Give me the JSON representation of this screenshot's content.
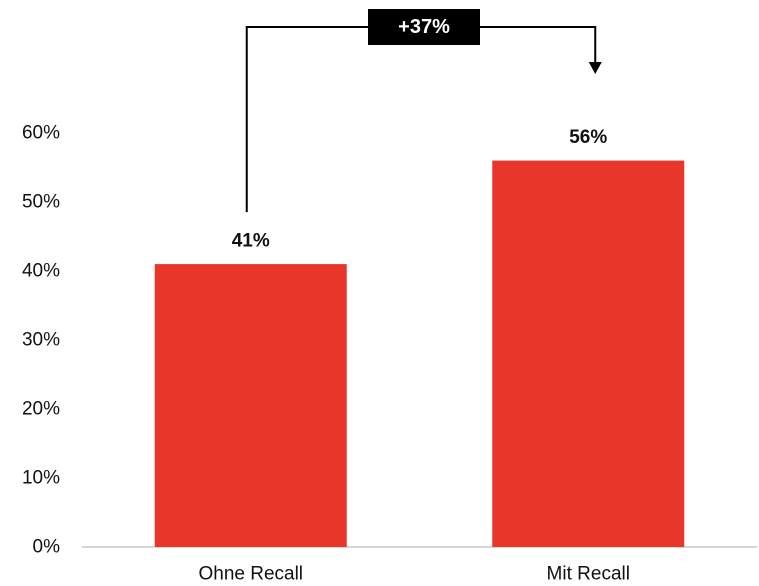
{
  "chart_data": {
    "type": "bar",
    "categories": [
      "Ohne Recall",
      "Mit Recall"
    ],
    "values": [
      41,
      56
    ],
    "data_labels": [
      "41%",
      "56%"
    ],
    "title": "",
    "xlabel": "",
    "ylabel": "",
    "ylim": [
      0,
      60
    ],
    "y_ticks": [
      0,
      10,
      20,
      30,
      40,
      50,
      60
    ],
    "y_tick_labels": [
      "0%",
      "10%",
      "20%",
      "30%",
      "40%",
      "50%",
      "60%"
    ],
    "grid": false,
    "legend": "none",
    "bar_color": "#E8372A",
    "annotation": {
      "text": "+37%",
      "from_category": "Ohne Recall",
      "to_category": "Mit Recall",
      "background": "#000000",
      "text_color": "#FFFFFF"
    }
  }
}
